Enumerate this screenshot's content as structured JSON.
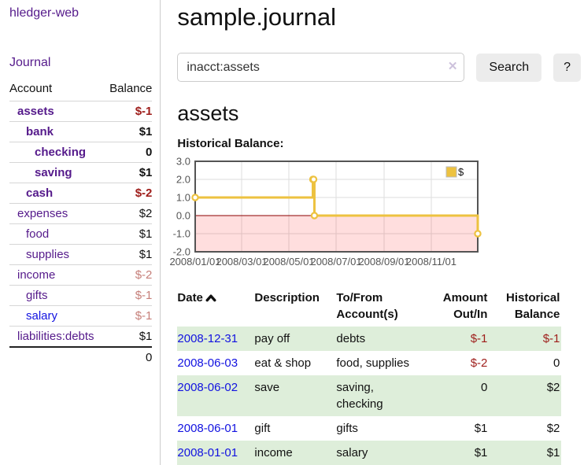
{
  "app": {
    "title": "hledger-web"
  },
  "sidebar": {
    "nav": {
      "journal_label": "Journal"
    },
    "accounts_table": {
      "headers": {
        "account": "Account",
        "balance": "Balance"
      },
      "rows": [
        {
          "name": "assets",
          "balance": "$-1",
          "depth": 1,
          "bold": true,
          "balance_style": "neg-strong",
          "link_style": "purple"
        },
        {
          "name": "bank",
          "balance": "$1",
          "depth": 2,
          "bold": true,
          "balance_style": "normal",
          "link_style": "purple"
        },
        {
          "name": "checking",
          "balance": "0",
          "depth": 3,
          "bold": true,
          "balance_style": "normal",
          "link_style": "purple"
        },
        {
          "name": "saving",
          "balance": "$1",
          "depth": 3,
          "bold": true,
          "balance_style": "normal",
          "link_style": "purple"
        },
        {
          "name": "cash",
          "balance": "$-2",
          "depth": 2,
          "bold": true,
          "balance_style": "neg-strong",
          "link_style": "purple"
        },
        {
          "name": "expenses",
          "balance": "$2",
          "depth": 1,
          "bold": false,
          "balance_style": "normal",
          "link_style": "purple"
        },
        {
          "name": "food",
          "balance": "$1",
          "depth": 2,
          "bold": false,
          "balance_style": "normal",
          "link_style": "purple"
        },
        {
          "name": "supplies",
          "balance": "$1",
          "depth": 2,
          "bold": false,
          "balance_style": "normal",
          "link_style": "purple"
        },
        {
          "name": "income",
          "balance": "$-2",
          "depth": 1,
          "bold": false,
          "balance_style": "neg-soft",
          "link_style": "purple"
        },
        {
          "name": "gifts",
          "balance": "$-1",
          "depth": 2,
          "bold": false,
          "balance_style": "neg-soft",
          "link_style": "purple"
        },
        {
          "name": "salary",
          "balance": "$-1",
          "depth": 2,
          "bold": false,
          "balance_style": "neg-soft",
          "link_style": "blue"
        },
        {
          "name": "liabilities:debts",
          "balance": "$1",
          "depth": 1,
          "bold": false,
          "balance_style": "normal",
          "link_style": "purple"
        }
      ],
      "total": "0"
    }
  },
  "header": {
    "title": "sample.journal"
  },
  "search": {
    "value": "inacct:assets",
    "clear_icon": "✕",
    "button_label": "Search",
    "help_label": "?"
  },
  "account_page": {
    "title": "assets",
    "chart_label": "Historical Balance:"
  },
  "chart_data": {
    "type": "line",
    "style": "step",
    "title": "Historical Balance of assets",
    "series": [
      {
        "name": "$",
        "color": "#edc240",
        "points": [
          [
            "2008-01-01",
            1
          ],
          [
            "2008-06-01",
            2
          ],
          [
            "2008-06-02",
            2
          ],
          [
            "2008-06-03",
            0
          ],
          [
            "2008-12-31",
            -1
          ]
        ]
      }
    ],
    "x_range": [
      "2008-01-01",
      "2008-12-31"
    ],
    "ylim": [
      -2,
      3
    ],
    "y_ticks": [
      3.0,
      2.0,
      1.0,
      0.0,
      -1.0,
      -2.0
    ],
    "y_tick_labels": [
      "3.0",
      "2.0",
      "1.0",
      "0.0",
      "-1.0",
      "-2.0"
    ],
    "x_ticks": [
      "2008/01/01",
      "2008/03/01",
      "2008/05/01",
      "2008/07/01",
      "2008/09/01",
      "2008/11/01"
    ],
    "grid": true,
    "legend": {
      "label": "$",
      "swatch_color": "#edc240",
      "position": "top-right"
    },
    "colors": {
      "zero_line": "#8b0000",
      "negative_region": "rgba(255,0,0,0.13)",
      "grid_line": "#dddddd",
      "border": "#545454",
      "tick_text": "#545454",
      "marker_fill": "#ffffff"
    }
  },
  "register_table": {
    "columns": [
      "Date",
      "Description",
      "To/From Account(s)",
      "Amount Out/In",
      "Historical Balance"
    ],
    "sort": {
      "column": "Date",
      "direction": "ascending"
    },
    "rows": [
      {
        "date": "2008-12-31",
        "description": "pay off",
        "accounts": "debts",
        "amount": "$-1",
        "amount_style": "neg-strong",
        "balance": "$-1",
        "balance_style": "neg-strong"
      },
      {
        "date": "2008-06-03",
        "description": "eat & shop",
        "accounts": "food, supplies",
        "amount": "$-2",
        "amount_style": "neg-strong",
        "balance": "0",
        "balance_style": "normal"
      },
      {
        "date": "2008-06-02",
        "description": "save",
        "accounts": "saving, checking",
        "amount": "0",
        "amount_style": "normal",
        "balance": "$2",
        "balance_style": "normal"
      },
      {
        "date": "2008-06-01",
        "description": "gift",
        "accounts": "gifts",
        "amount": "$1",
        "amount_style": "normal",
        "balance": "$2",
        "balance_style": "normal"
      },
      {
        "date": "2008-01-01",
        "description": "income",
        "accounts": "salary",
        "amount": "$1",
        "amount_style": "normal",
        "balance": "$1",
        "balance_style": "normal"
      }
    ]
  },
  "colors": {
    "link_purple": "#551a8b",
    "link_blue": "#1212e0",
    "negative_strong": "#9e1d1a",
    "negative_soft": "#c67f79",
    "row_stripe_green": "#deeeda"
  }
}
